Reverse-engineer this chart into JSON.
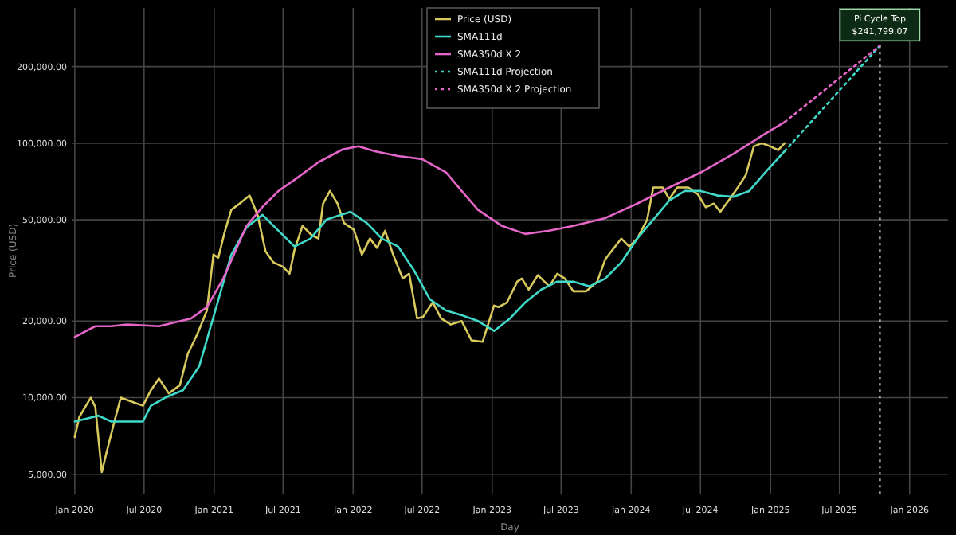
{
  "chart_data": {
    "type": "line",
    "xlabel": "Day",
    "ylabel": "Price (USD)",
    "log": "y",
    "grid": true,
    "legend": "top",
    "xlim": [
      "2019-12-24",
      "2026-04-12"
    ],
    "ylim": [
      4200,
      340000
    ],
    "xticks": [
      {
        "value": "2020-01-01",
        "label": "Jan 2020"
      },
      {
        "value": "2020-07-01",
        "label": "Jul 2020"
      },
      {
        "value": "2021-01-01",
        "label": "Jan 2021"
      },
      {
        "value": "2021-07-01",
        "label": "Jul 2021"
      },
      {
        "value": "2022-01-01",
        "label": "Jan 2022"
      },
      {
        "value": "2022-07-01",
        "label": "Jul 2022"
      },
      {
        "value": "2023-01-01",
        "label": "Jan 2023"
      },
      {
        "value": "2023-07-01",
        "label": "Jul 2023"
      },
      {
        "value": "2024-01-01",
        "label": "Jan 2024"
      },
      {
        "value": "2024-07-01",
        "label": "Jul 2024"
      },
      {
        "value": "2025-01-01",
        "label": "Jan 2025"
      },
      {
        "value": "2025-07-01",
        "label": "Jul 2025"
      },
      {
        "value": "2026-01-01",
        "label": "Jan 2026"
      }
    ],
    "yticks": [
      {
        "value": 5000,
        "label": "5,000.00"
      },
      {
        "value": 10000,
        "label": "10,000.00"
      },
      {
        "value": 20000,
        "label": "20,000.00"
      },
      {
        "value": 50000,
        "label": "50,000.00"
      },
      {
        "value": 100000,
        "label": "100,000.00"
      },
      {
        "value": 200000,
        "label": "200,000.00"
      }
    ],
    "series": [
      {
        "name": "Price (USD)",
        "color": "#d8c95c",
        "line_style": "solid",
        "x": [
          "2020-01-01",
          "2020-01-13",
          "2020-02-12",
          "2020-02-24",
          "2020-03-12",
          "2020-03-24",
          "2020-04-14",
          "2020-05-01",
          "2020-05-25",
          "2020-06-28",
          "2020-07-19",
          "2020-08-09",
          "2020-09-04",
          "2020-10-03",
          "2020-10-24",
          "2020-11-18",
          "2020-12-13",
          "2020-12-30",
          "2021-01-12",
          "2021-01-29",
          "2021-02-15",
          "2021-03-14",
          "2021-04-04",
          "2021-04-25",
          "2021-05-16",
          "2021-06-06",
          "2021-07-01",
          "2021-07-18",
          "2021-07-31",
          "2021-08-21",
          "2021-09-15",
          "2021-10-02",
          "2021-10-14",
          "2021-11-01",
          "2021-11-21",
          "2021-12-08",
          "2022-01-03",
          "2022-01-24",
          "2022-02-14",
          "2022-03-05",
          "2022-03-26",
          "2022-04-16",
          "2022-05-11",
          "2022-05-28",
          "2022-06-18",
          "2022-07-04",
          "2022-07-29",
          "2022-08-20",
          "2022-09-14",
          "2022-10-13",
          "2022-11-08",
          "2022-12-07",
          "2023-01-06",
          "2023-01-18",
          "2023-02-09",
          "2023-03-08",
          "2023-03-20",
          "2023-04-07",
          "2023-05-01",
          "2023-05-31",
          "2023-06-21",
          "2023-07-11",
          "2023-08-02",
          "2023-09-05",
          "2023-10-04",
          "2023-10-25",
          "2023-12-06",
          "2023-12-27",
          "2024-01-17",
          "2024-02-12",
          "2024-02-28",
          "2024-03-24",
          "2024-04-10",
          "2024-05-01",
          "2024-05-30",
          "2024-06-24",
          "2024-07-15",
          "2024-08-05",
          "2024-08-22",
          "2024-09-16",
          "2024-10-07",
          "2024-10-28",
          "2024-11-18",
          "2024-12-09",
          "2024-12-31",
          "2025-01-21",
          "2025-02-07"
        ],
        "values": [
          7000,
          8400,
          10000,
          9200,
          5100,
          6050,
          8060,
          10000,
          9700,
          9300,
          10700,
          11900,
          10400,
          11200,
          14900,
          17800,
          22000,
          36500,
          35500,
          45000,
          54700,
          58700,
          62300,
          52300,
          37600,
          34000,
          32700,
          30700,
          38100,
          47300,
          43400,
          42200,
          57900,
          64900,
          57900,
          48600,
          45700,
          36500,
          42200,
          38800,
          45300,
          36500,
          29400,
          30700,
          20500,
          20800,
          23700,
          20500,
          19400,
          20000,
          16800,
          16600,
          23000,
          22700,
          23700,
          28600,
          29400,
          26600,
          30300,
          27400,
          30700,
          29400,
          26200,
          26200,
          28600,
          35000,
          42200,
          39300,
          42200,
          50100,
          67000,
          67000,
          60400,
          67000,
          67000,
          63000,
          56000,
          57900,
          53800,
          60400,
          67000,
          74900,
          97200,
          100000,
          97200,
          94000,
          100000
        ]
      },
      {
        "name": "SMA111d",
        "color": "#3fd9c9",
        "line_style": "solid",
        "x": [
          "2020-01-01",
          "2020-02-04",
          "2020-03-03",
          "2020-04-06",
          "2020-06-08",
          "2020-06-28",
          "2020-07-19",
          "2020-08-31",
          "2020-10-11",
          "2020-11-23",
          "2021-01-04",
          "2021-02-15",
          "2021-03-27",
          "2021-05-08",
          "2021-06-19",
          "2021-07-31",
          "2021-09-11",
          "2021-10-23",
          "2021-12-25",
          "2022-02-06",
          "2022-03-17",
          "2022-04-29",
          "2022-06-10",
          "2022-07-21",
          "2022-09-02",
          "2022-10-13",
          "2022-11-25",
          "2023-01-06",
          "2023-02-17",
          "2023-03-29",
          "2023-05-10",
          "2023-06-21",
          "2023-08-02",
          "2023-09-14",
          "2023-10-25",
          "2023-12-06",
          "2024-01-17",
          "2024-02-28",
          "2024-04-10",
          "2024-05-21",
          "2024-07-02",
          "2024-08-14",
          "2024-09-25",
          "2024-11-06",
          "2024-12-18",
          "2025-02-07"
        ],
        "values": [
          8060,
          8300,
          8500,
          8060,
          8060,
          8060,
          9300,
          10100,
          10700,
          13300,
          22000,
          36500,
          46700,
          52300,
          45300,
          39300,
          42200,
          50100,
          53800,
          48600,
          42200,
          39300,
          31600,
          24400,
          22000,
          21100,
          20000,
          18300,
          20500,
          23700,
          26600,
          28600,
          28600,
          27400,
          29400,
          34000,
          42200,
          50100,
          59500,
          64900,
          64900,
          62300,
          61600,
          64900,
          76800,
          93000
        ]
      },
      {
        "name": "SMA350d X 2",
        "color": "#e565c8",
        "line_style": "solid",
        "x": [
          "2020-01-01",
          "2020-02-24",
          "2020-04-06",
          "2020-05-17",
          "2020-08-09",
          "2020-11-02",
          "2020-12-13",
          "2021-01-25",
          "2021-03-27",
          "2021-05-08",
          "2021-06-19",
          "2021-07-31",
          "2021-10-02",
          "2021-12-04",
          "2022-01-15",
          "2022-02-27",
          "2022-04-29",
          "2022-07-01",
          "2022-09-02",
          "2022-10-13",
          "2022-11-25",
          "2023-01-27",
          "2023-03-29",
          "2023-05-31",
          "2023-08-02",
          "2023-10-25",
          "2024-01-17",
          "2024-04-10",
          "2024-07-02",
          "2024-09-25",
          "2024-12-18",
          "2025-02-07"
        ],
        "values": [
          17300,
          19100,
          19100,
          19400,
          19100,
          20500,
          22700,
          29400,
          47300,
          56200,
          64900,
          71800,
          84200,
          94500,
          97200,
          93000,
          89100,
          86600,
          76800,
          64900,
          54700,
          47300,
          44000,
          45300,
          47300,
          50800,
          57900,
          67000,
          76800,
          90800,
          109000,
          121000
        ]
      },
      {
        "name": "SMA111d Projection",
        "color": "#3fd9c9",
        "line_style": "dotted",
        "x": [
          "2025-02-07",
          "2025-10-15"
        ],
        "values": [
          93000,
          241799.07
        ]
      },
      {
        "name": "SMA350d X 2 Projection",
        "color": "#e565c8",
        "line_style": "dotted",
        "x": [
          "2025-02-07",
          "2025-10-15"
        ],
        "values": [
          121000,
          241799.07
        ]
      }
    ],
    "ref_lines": [
      {
        "axis": "x",
        "value": "2025-10-15",
        "color": "#ffffff",
        "line_style": "dotted"
      }
    ],
    "annotations": [
      {
        "text": "Pi Cycle Top\n$241,799.07",
        "x": "2025-10-15",
        "y": 241799.07
      }
    ]
  }
}
